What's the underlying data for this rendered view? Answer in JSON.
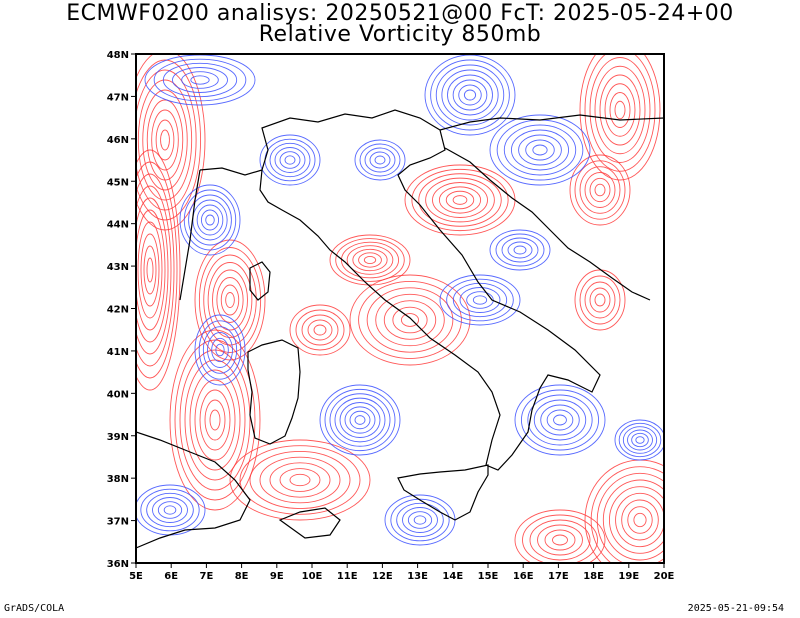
{
  "title_line1": "ECMWF0200 analisys: 20250521@00 FcT: 2025-05-24+00",
  "title_line2": "Relative Vorticity 850mb",
  "footer_left": "GrADS/COLA",
  "footer_right": "2025-05-21-09:54",
  "map": {
    "lon_range": [
      5,
      20
    ],
    "lat_range": [
      36,
      48
    ],
    "lon_labels": [
      "5E",
      "6E",
      "7E",
      "8E",
      "9E",
      "10E",
      "11E",
      "12E",
      "13E",
      "14E",
      "15E",
      "16E",
      "17E",
      "18E",
      "19E",
      "20E"
    ],
    "lat_labels": [
      "36N",
      "37N",
      "38N",
      "39N",
      "40N",
      "41N",
      "42N",
      "43N",
      "44N",
      "45N",
      "46N",
      "47N",
      "48N"
    ],
    "colors": {
      "positive_contour": "#ff3b3b",
      "negative_contour": "#3b50ff",
      "coastline": "#000000",
      "background": "#ffffff"
    }
  }
}
